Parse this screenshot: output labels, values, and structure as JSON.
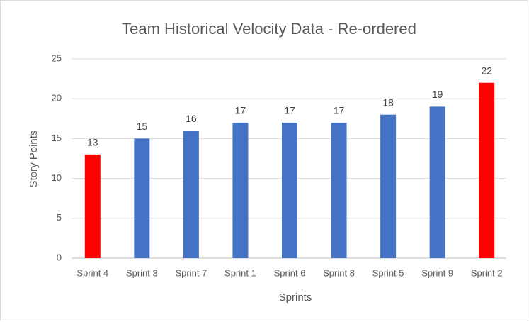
{
  "chart_data": {
    "type": "bar",
    "title": "Team Historical Velocity Data - Re-ordered",
    "x_label": "Sprints",
    "y_label": "Story Points",
    "categories": [
      "Sprint 4",
      "Sprint 3",
      "Sprint 7",
      "Sprint 1",
      "Sprint 6",
      "Sprint 8",
      "Sprint 5",
      "Sprint 9",
      "Sprint 2"
    ],
    "values": [
      13,
      15,
      16,
      17,
      17,
      17,
      18,
      19,
      22
    ],
    "colors": [
      "#ff0000",
      "#4472c4",
      "#4472c4",
      "#4472c4",
      "#4472c4",
      "#4472c4",
      "#4472c4",
      "#4472c4",
      "#ff0000"
    ],
    "ylim": [
      0,
      25
    ],
    "yticks": [
      0,
      5,
      10,
      15,
      20,
      25
    ],
    "grid": true
  }
}
